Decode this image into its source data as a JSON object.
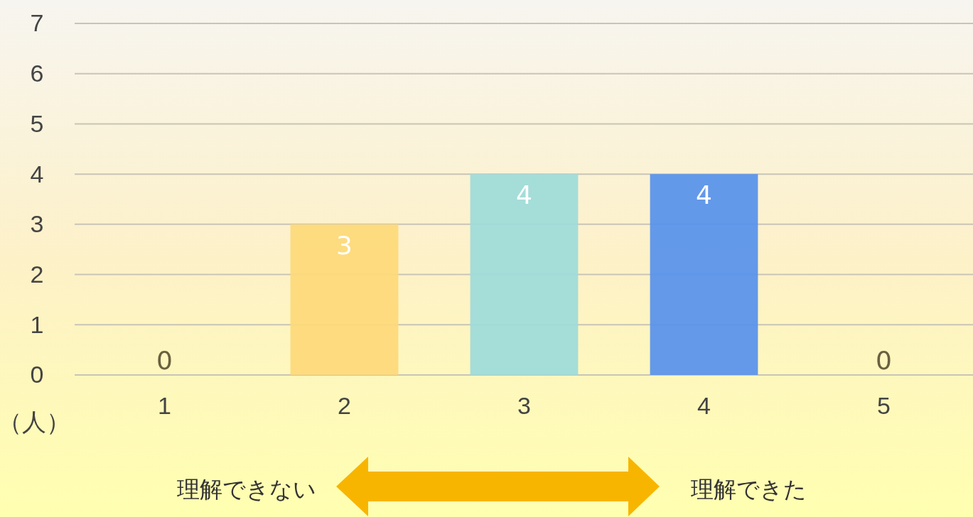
{
  "chart_data": {
    "type": "bar",
    "categories": [
      "1",
      "2",
      "3",
      "4",
      "5"
    ],
    "values": [
      0,
      3,
      4,
      4,
      0
    ],
    "colors": [
      "#f4b183",
      "#fdd97a",
      "#a0dbd9",
      "#5b93ea",
      "#2f5597"
    ],
    "ylim": [
      0,
      7
    ],
    "yticks": [
      0,
      1,
      2,
      3,
      4,
      5,
      6,
      7
    ],
    "ylabel": "（人）",
    "grid": "y",
    "data_labels": true,
    "annotations": [
      "理解できない",
      "理解できた"
    ]
  }
}
